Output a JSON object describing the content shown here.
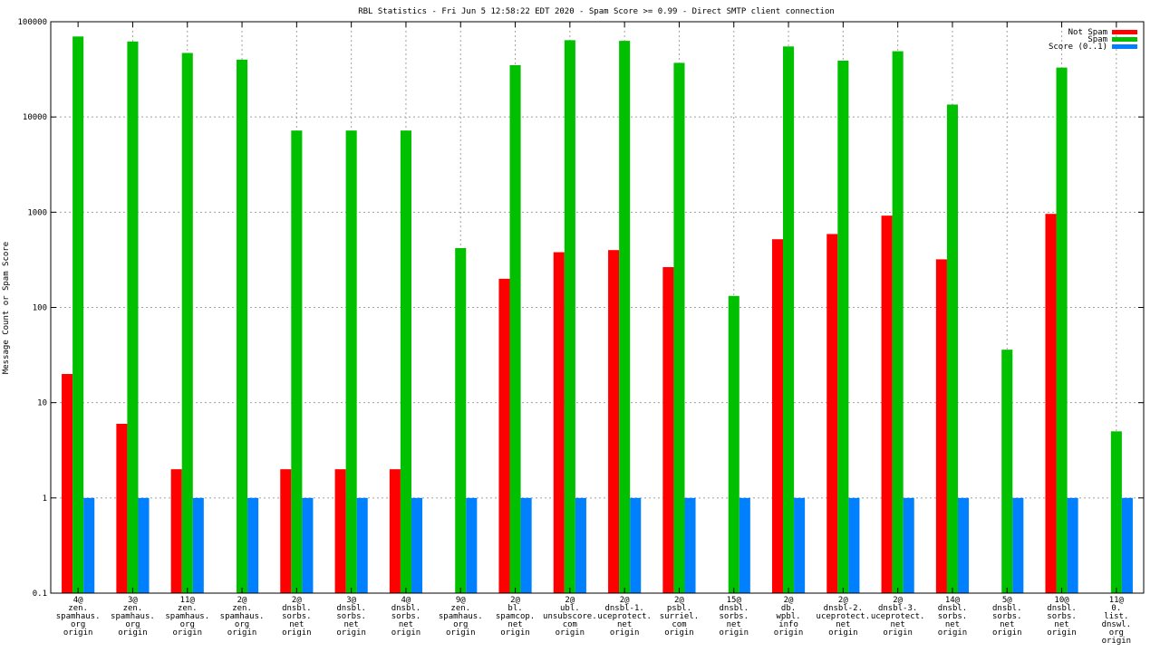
{
  "chart_data": {
    "type": "bar",
    "title": "RBL Statistics - Fri Jun  5 12:58:22 EDT 2020 - Spam Score >= 0.99 - Direct SMTP client connection",
    "ylabel": "Message Count or Spam Score",
    "xlabel": "",
    "y_scale": "log",
    "ylim": [
      0.1,
      100000
    ],
    "y_ticks": [
      "0.1",
      "1",
      "10",
      "100",
      "1000",
      "10000",
      "100000"
    ],
    "grid": true,
    "legend_position": "top-right",
    "categories": [
      [
        "4@",
        "zen.",
        "spamhaus.",
        "org",
        "origin"
      ],
      [
        "3@",
        "zen.",
        "spamhaus.",
        "org",
        "origin"
      ],
      [
        "11@",
        "zen.",
        "spamhaus.",
        "org",
        "origin"
      ],
      [
        "2@",
        "zen.",
        "spamhaus.",
        "org",
        "origin"
      ],
      [
        "2@",
        "dnsbl.",
        "sorbs.",
        "net",
        "origin"
      ],
      [
        "3@",
        "dnsbl.",
        "sorbs.",
        "net",
        "origin"
      ],
      [
        "4@",
        "dnsbl.",
        "sorbs.",
        "net",
        "origin"
      ],
      [
        "9@",
        "zen.",
        "spamhaus.",
        "org",
        "origin"
      ],
      [
        "2@",
        "bl.",
        "spamcop.",
        "net",
        "origin"
      ],
      [
        "2@",
        "ubl.",
        "unsubscore.",
        "com",
        "origin"
      ],
      [
        "2@",
        "dnsbl-1.",
        "uceprotect.",
        "net",
        "origin"
      ],
      [
        "2@",
        "psbl.",
        "surriel.",
        "com",
        "origin"
      ],
      [
        "15@",
        "dnsbl.",
        "sorbs.",
        "net",
        "origin"
      ],
      [
        "2@",
        "db.",
        "wpbl.",
        "info",
        "origin"
      ],
      [
        "2@",
        "dnsbl-2.",
        "uceprotect.",
        "net",
        "origin"
      ],
      [
        "2@",
        "dnsbl-3.",
        "uceprotect.",
        "net",
        "origin"
      ],
      [
        "14@",
        "dnsbl.",
        "sorbs.",
        "net",
        "origin"
      ],
      [
        "5@",
        "dnsbl.",
        "sorbs.",
        "net",
        "origin"
      ],
      [
        "10@",
        "dnsbl.",
        "sorbs.",
        "net",
        "origin"
      ],
      [
        "11@",
        "0.",
        "list.",
        "dnswl.",
        "org",
        "origin"
      ]
    ],
    "series": [
      {
        "name": "Not Spam",
        "color": "#ff0000",
        "values": [
          20,
          6,
          2,
          null,
          2,
          2,
          2,
          null,
          200,
          380,
          400,
          265,
          null,
          520,
          590,
          920,
          320,
          null,
          960,
          null
        ]
      },
      {
        "name": "Spam",
        "color": "#00c000",
        "values": [
          70000,
          62000,
          47000,
          40000,
          7200,
          7200,
          7200,
          420,
          35000,
          64000,
          63000,
          37000,
          132,
          55000,
          39000,
          49000,
          13500,
          36,
          33000,
          5
        ]
      },
      {
        "name": "Score (0..1)",
        "color": "#0080ff",
        "values": [
          1,
          1,
          1,
          1,
          1,
          1,
          1,
          1,
          1,
          1,
          1,
          1,
          1,
          1,
          1,
          1,
          1,
          1,
          1,
          1
        ]
      }
    ]
  }
}
